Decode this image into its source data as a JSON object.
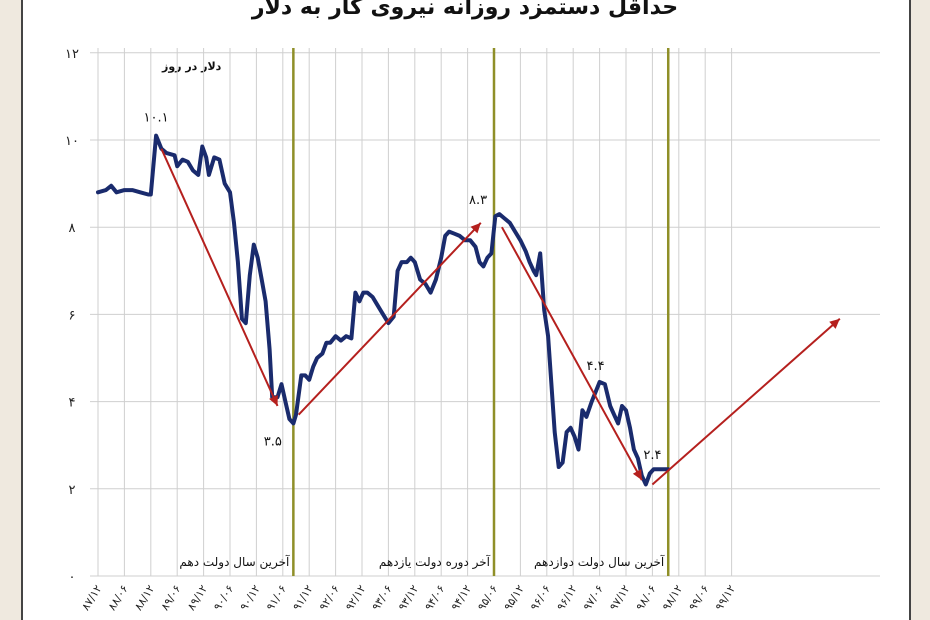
{
  "chart_data": {
    "type": "line",
    "title": "حداقل دستمزد روزانه نیروی کار به دلار",
    "ylabel": "دلار در روز",
    "ylim": [
      0,
      12
    ],
    "yticks": [
      "۰",
      "۲",
      "۴",
      "۶",
      "۸",
      "۱۰",
      "۱۲"
    ],
    "xticks": [
      "۸۷/۱۲",
      "۸۸/۰۶",
      "۸۸/۱۲",
      "۸۹/۰۶",
      "۸۹/۱۲",
      "۹۰/۰۶",
      "۹۰/۱۲",
      "۹۱/۰۶",
      "۹۱/۱۲",
      "۹۲/۰۶",
      "۹۲/۱۲",
      "۹۳/۰۶",
      "۹۳/۱۲",
      "۹۴/۰۶",
      "۹۴/۱۲",
      "۹۵/۰۶",
      "۹۵/۱۲",
      "۹۶/۰۶",
      "۹۶/۱۲",
      "۹۷/۰۶",
      "۹۷/۱۲",
      "۹۸/۰۶",
      "۹۸/۱۲",
      "۹۹/۰۶",
      "۹۹/۱۲"
    ],
    "series": [
      {
        "color": "#1a2b6d",
        "points": [
          [
            0.0,
            8.8
          ],
          [
            0.3,
            8.85
          ],
          [
            0.5,
            8.95
          ],
          [
            0.7,
            8.8
          ],
          [
            1.0,
            8.85
          ],
          [
            1.3,
            8.85
          ],
          [
            1.6,
            8.8
          ],
          [
            1.9,
            8.75
          ],
          [
            2.0,
            8.75
          ],
          [
            2.2,
            10.1
          ],
          [
            2.4,
            9.8
          ],
          [
            2.6,
            9.7
          ],
          [
            2.9,
            9.65
          ],
          [
            3.0,
            9.4
          ],
          [
            3.2,
            9.55
          ],
          [
            3.4,
            9.5
          ],
          [
            3.6,
            9.3
          ],
          [
            3.8,
            9.2
          ],
          [
            3.95,
            9.85
          ],
          [
            4.1,
            9.6
          ],
          [
            4.2,
            9.2
          ],
          [
            4.4,
            9.6
          ],
          [
            4.6,
            9.55
          ],
          [
            4.8,
            9.0
          ],
          [
            5.0,
            8.8
          ],
          [
            5.15,
            8.1
          ],
          [
            5.3,
            7.2
          ],
          [
            5.45,
            5.9
          ],
          [
            5.6,
            5.8
          ],
          [
            5.75,
            6.9
          ],
          [
            5.9,
            7.6
          ],
          [
            6.05,
            7.3
          ],
          [
            6.2,
            6.8
          ],
          [
            6.35,
            6.3
          ],
          [
            6.5,
            5.2
          ],
          [
            6.6,
            4.1
          ],
          [
            6.8,
            4.1
          ],
          [
            6.95,
            4.4
          ],
          [
            7.1,
            4.0
          ],
          [
            7.25,
            3.6
          ],
          [
            7.4,
            3.5
          ],
          [
            7.5,
            3.7
          ],
          [
            7.7,
            4.6
          ],
          [
            7.85,
            4.6
          ],
          [
            8.0,
            4.5
          ],
          [
            8.15,
            4.8
          ],
          [
            8.3,
            5.0
          ],
          [
            8.5,
            5.1
          ],
          [
            8.65,
            5.35
          ],
          [
            8.8,
            5.35
          ],
          [
            9.0,
            5.5
          ],
          [
            9.2,
            5.4
          ],
          [
            9.4,
            5.5
          ],
          [
            9.6,
            5.45
          ],
          [
            9.75,
            6.5
          ],
          [
            9.9,
            6.3
          ],
          [
            10.05,
            6.5
          ],
          [
            10.2,
            6.5
          ],
          [
            10.4,
            6.4
          ],
          [
            10.6,
            6.2
          ],
          [
            10.8,
            6.0
          ],
          [
            11.0,
            5.8
          ],
          [
            11.2,
            5.95
          ],
          [
            11.35,
            7.0
          ],
          [
            11.5,
            7.2
          ],
          [
            11.7,
            7.2
          ],
          [
            11.85,
            7.3
          ],
          [
            12.0,
            7.2
          ],
          [
            12.2,
            6.8
          ],
          [
            12.4,
            6.7
          ],
          [
            12.6,
            6.5
          ],
          [
            12.8,
            6.8
          ],
          [
            13.0,
            7.3
          ],
          [
            13.15,
            7.8
          ],
          [
            13.3,
            7.9
          ],
          [
            13.5,
            7.85
          ],
          [
            13.7,
            7.8
          ],
          [
            13.9,
            7.7
          ],
          [
            14.1,
            7.7
          ],
          [
            14.3,
            7.55
          ],
          [
            14.45,
            7.2
          ],
          [
            14.6,
            7.1
          ],
          [
            14.75,
            7.3
          ],
          [
            14.9,
            7.4
          ],
          [
            15.05,
            8.25
          ],
          [
            15.2,
            8.3
          ],
          [
            15.4,
            8.2
          ],
          [
            15.6,
            8.1
          ],
          [
            15.8,
            7.9
          ],
          [
            16.0,
            7.7
          ],
          [
            16.2,
            7.45
          ],
          [
            16.35,
            7.2
          ],
          [
            16.5,
            7.0
          ],
          [
            16.6,
            6.9
          ],
          [
            16.75,
            7.4
          ],
          [
            16.9,
            6.1
          ],
          [
            17.05,
            5.5
          ],
          [
            17.15,
            4.6
          ],
          [
            17.3,
            3.3
          ],
          [
            17.45,
            2.5
          ],
          [
            17.6,
            2.6
          ],
          [
            17.75,
            3.3
          ],
          [
            17.9,
            3.4
          ],
          [
            18.05,
            3.2
          ],
          [
            18.2,
            2.9
          ],
          [
            18.35,
            3.8
          ],
          [
            18.5,
            3.65
          ],
          [
            18.7,
            4.0
          ],
          [
            18.9,
            4.3
          ],
          [
            19.0,
            4.45
          ],
          [
            19.2,
            4.4
          ],
          [
            19.4,
            3.9
          ],
          [
            19.55,
            3.7
          ],
          [
            19.7,
            3.5
          ],
          [
            19.85,
            3.9
          ],
          [
            20.0,
            3.8
          ],
          [
            20.15,
            3.4
          ],
          [
            20.3,
            2.9
          ],
          [
            20.45,
            2.7
          ],
          [
            20.6,
            2.3
          ],
          [
            20.75,
            2.1
          ],
          [
            20.9,
            2.35
          ],
          [
            21.05,
            2.45
          ],
          [
            21.3,
            2.45
          ],
          [
            21.6,
            2.45
          ]
        ]
      }
    ],
    "trend_arrows": [
      [
        [
          2.4,
          9.8
        ],
        [
          6.8,
          3.9
        ]
      ],
      [
        [
          7.6,
          3.7
        ],
        [
          14.5,
          8.1
        ]
      ],
      [
        [
          15.3,
          8.0
        ],
        [
          20.6,
          2.2
        ]
      ],
      [
        [
          21.0,
          2.1
        ],
        [
          28.1,
          5.9
        ]
      ]
    ],
    "annotations": [
      {
        "text": "۱۰.۱",
        "x": 2.2,
        "y": 10.1
      },
      {
        "text": "۳.۵",
        "x": 7.0,
        "y": 3.5
      },
      {
        "text": "۸.۳",
        "x": 14.7,
        "y": 8.3
      },
      {
        "text": "۴.۴",
        "x": 19.0,
        "y": 4.45
      },
      {
        "text": "۲.۴",
        "x": 21.0,
        "y": 2.45
      }
    ],
    "vertical_markers": [
      {
        "x": 7.4,
        "label": "آخرین سال دولت دهم"
      },
      {
        "x": 15.0,
        "label": "آخر دوره دولت یازدهم"
      },
      {
        "x": 21.6,
        "label": "آخرین سال دولت دوازدهم"
      }
    ],
    "grid": true,
    "colors": {
      "line": "#1a2b6d",
      "arrow": "#b5201e",
      "marker": "#8f8f28",
      "grid": "#cfcfcf",
      "background": "#ffffff",
      "frame": "#efe9df"
    }
  }
}
